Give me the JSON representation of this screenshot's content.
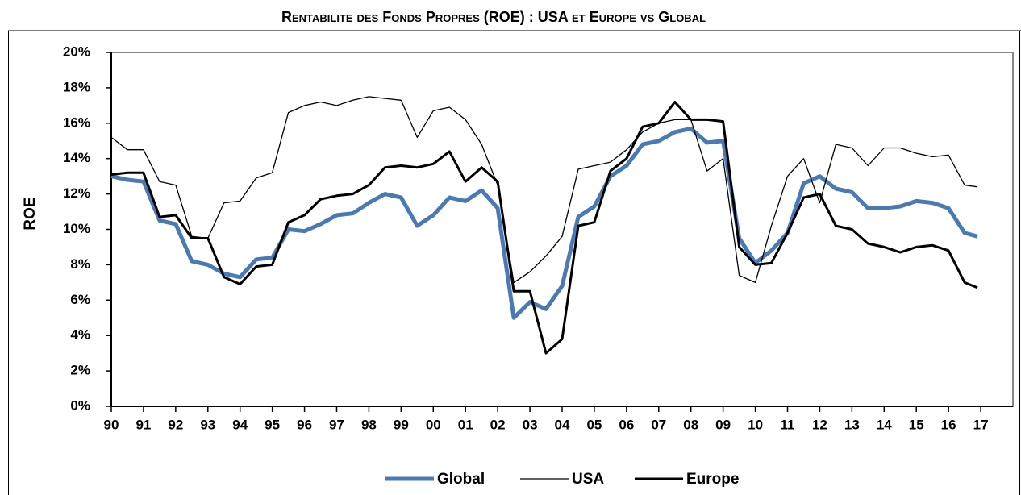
{
  "chart_data": {
    "type": "line",
    "title": "Rentabilite des Fonds Propres (ROE) : USA et Europe vs Global",
    "ylabel": "ROE",
    "x": [
      1990,
      1990.5,
      1991,
      1991.5,
      1992,
      1992.5,
      1993,
      1993.5,
      1994,
      1994.5,
      1995,
      1995.5,
      1996,
      1996.5,
      1997,
      1997.5,
      1998,
      1998.5,
      1999,
      1999.5,
      2000,
      2000.5,
      2001,
      2001.5,
      2002,
      2002.5,
      2003,
      2003.5,
      2004,
      2004.5,
      2005,
      2005.5,
      2006,
      2006.5,
      2007,
      2007.5,
      2008,
      2008.5,
      2009,
      2009.5,
      2010,
      2010.5,
      2011,
      2011.5,
      2012,
      2012.5,
      2013,
      2013.5,
      2014,
      2014.5,
      2015,
      2015.5,
      2016,
      2016.5,
      2016.9
    ],
    "series": [
      {
        "name": "Global",
        "color": "#4a7ab5",
        "width": 5,
        "values": [
          13.0,
          12.8,
          12.7,
          10.5,
          10.3,
          8.2,
          8.0,
          7.5,
          7.3,
          8.3,
          8.4,
          10.0,
          9.9,
          10.3,
          10.8,
          10.9,
          11.5,
          12.0,
          11.8,
          10.2,
          10.8,
          11.8,
          11.6,
          12.2,
          11.2,
          5.0,
          5.9,
          5.5,
          6.8,
          10.7,
          11.3,
          13.0,
          13.6,
          14.8,
          15.0,
          15.5,
          15.7,
          14.9,
          15.0,
          9.5,
          8.1,
          8.8,
          9.8,
          12.6,
          13.0,
          12.3,
          12.1,
          11.2,
          11.2,
          11.3,
          11.6,
          11.5,
          11.2,
          9.8,
          9.6
        ]
      },
      {
        "name": "USA",
        "color": "#000000",
        "width": 1.3,
        "values": [
          15.2,
          14.5,
          14.5,
          12.7,
          12.5,
          9.6,
          9.5,
          11.5,
          11.6,
          12.9,
          13.2,
          16.6,
          17.0,
          17.2,
          17.0,
          17.3,
          17.5,
          17.4,
          17.3,
          15.2,
          16.7,
          16.9,
          16.2,
          14.8,
          12.5,
          7.0,
          7.6,
          8.5,
          9.6,
          13.4,
          13.6,
          13.8,
          14.5,
          15.5,
          16.0,
          16.2,
          16.2,
          13.3,
          14.0,
          7.4,
          7.0,
          10.2,
          13.0,
          14.0,
          11.5,
          14.8,
          14.6,
          13.6,
          14.6,
          14.6,
          14.3,
          14.1,
          14.2,
          12.5,
          12.4
        ]
      },
      {
        "name": "Europe",
        "color": "#000000",
        "width": 3,
        "values": [
          13.1,
          13.2,
          13.2,
          10.7,
          10.8,
          9.5,
          9.5,
          7.3,
          6.9,
          7.9,
          8.0,
          10.4,
          10.8,
          11.7,
          11.9,
          12.0,
          12.5,
          13.5,
          13.6,
          13.5,
          13.7,
          14.4,
          12.7,
          13.5,
          12.7,
          6.5,
          6.5,
          3.0,
          3.8,
          10.2,
          10.4,
          13.3,
          14.0,
          15.8,
          16.0,
          17.2,
          16.2,
          16.2,
          16.1,
          9.0,
          8.0,
          8.1,
          9.8,
          11.8,
          12.0,
          10.2,
          10.0,
          9.2,
          9.0,
          8.7,
          9.0,
          9.1,
          8.8,
          7.0,
          6.7
        ]
      }
    ],
    "xlim": [
      1990,
      2018
    ],
    "xticks": [
      {
        "value": 1990,
        "label": "90"
      },
      {
        "value": 1991,
        "label": "91"
      },
      {
        "value": 1992,
        "label": "92"
      },
      {
        "value": 1993,
        "label": "93"
      },
      {
        "value": 1994,
        "label": "94"
      },
      {
        "value": 1995,
        "label": "95"
      },
      {
        "value": 1996,
        "label": "96"
      },
      {
        "value": 1997,
        "label": "97"
      },
      {
        "value": 1998,
        "label": "98"
      },
      {
        "value": 1999,
        "label": "99"
      },
      {
        "value": 2000,
        "label": "00"
      },
      {
        "value": 2001,
        "label": "01"
      },
      {
        "value": 2002,
        "label": "02"
      },
      {
        "value": 2003,
        "label": "03"
      },
      {
        "value": 2004,
        "label": "04"
      },
      {
        "value": 2005,
        "label": "05"
      },
      {
        "value": 2006,
        "label": "06"
      },
      {
        "value": 2007,
        "label": "07"
      },
      {
        "value": 2008,
        "label": "08"
      },
      {
        "value": 2009,
        "label": "09"
      },
      {
        "value": 2010,
        "label": "10"
      },
      {
        "value": 2011,
        "label": "11"
      },
      {
        "value": 2012,
        "label": "12"
      },
      {
        "value": 2013,
        "label": "13"
      },
      {
        "value": 2014,
        "label": "14"
      },
      {
        "value": 2015,
        "label": "15"
      },
      {
        "value": 2016,
        "label": "16"
      },
      {
        "value": 2017,
        "label": "17"
      }
    ],
    "ylim": [
      0,
      20
    ],
    "yticks": [
      {
        "value": 0,
        "label": "0%"
      },
      {
        "value": 2,
        "label": "2%"
      },
      {
        "value": 4,
        "label": "4%"
      },
      {
        "value": 6,
        "label": "6%"
      },
      {
        "value": 8,
        "label": "8%"
      },
      {
        "value": 10,
        "label": "10%"
      },
      {
        "value": 12,
        "label": "12%"
      },
      {
        "value": 14,
        "label": "14%"
      },
      {
        "value": 16,
        "label": "16%"
      },
      {
        "value": 18,
        "label": "18%"
      },
      {
        "value": 20,
        "label": "20%"
      }
    ],
    "grid": false,
    "legend": "bottom"
  }
}
